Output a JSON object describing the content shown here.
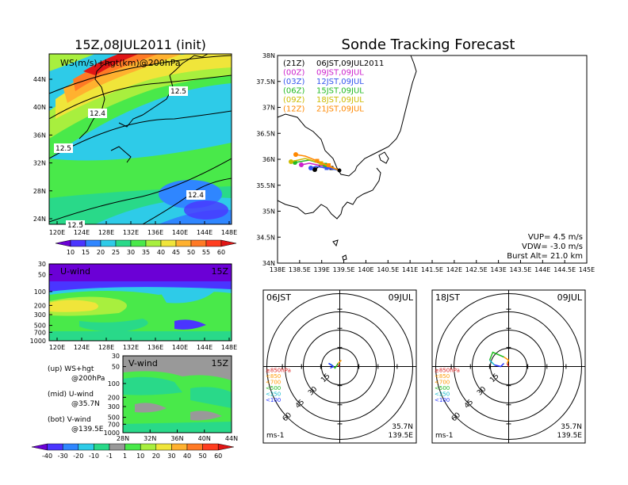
{
  "colors": {
    "run00": "#cc22cc",
    "run03": "#3355ee",
    "run06": "#22bb22",
    "run09": "#ccbb00",
    "run12": "#ff8800",
    "run21": "#000000",
    "red": "#dd2222",
    "orange": "#ff9900",
    "green": "#22bb22",
    "cyan": "#11bbcc",
    "blue": "#2233ff"
  },
  "map_panel": {
    "title": "15Z,08JUL2011 (init)",
    "label": "WS(m/s)+hgt(km)@200hPa",
    "lat_ticks": [
      "44N",
      "40N",
      "36N",
      "32N",
      "28N",
      "24N"
    ],
    "lon_ticks": [
      "120E",
      "124E",
      "128E",
      "132E",
      "136E",
      "140E",
      "144E",
      "148E"
    ],
    "contour_labels": [
      "12.5",
      "12.4",
      "12.5",
      "12.4",
      "12.5"
    ],
    "colorbar": {
      "labels": [
        "10",
        "15",
        "20",
        "25",
        "30",
        "35",
        "40",
        "45",
        "50",
        "55",
        "60"
      ],
      "colors": [
        "#6b00d6",
        "#4a35ff",
        "#2f86ff",
        "#2ecbe8",
        "#29d989",
        "#49e94a",
        "#a8ef3e",
        "#f0e53a",
        "#ffb12f",
        "#ff7a25",
        "#ff3d1f",
        "#e01515"
      ]
    }
  },
  "uwind_panel": {
    "label": "U-wind",
    "time": "15Z",
    "y_ticks": [
      "30",
      "50",
      "100",
      "200",
      "300",
      "500",
      "700",
      "1000"
    ],
    "x_ticks": [
      "120E",
      "124E",
      "128E",
      "132E",
      "136E",
      "140E",
      "144E",
      "148E"
    ]
  },
  "vwind_panel": {
    "label": "V-wind",
    "time": "15Z",
    "y_ticks": [
      "30",
      "50",
      "100",
      "200",
      "300",
      "500",
      "700",
      "1000"
    ],
    "x_ticks": [
      "28N",
      "32N",
      "36N",
      "40N",
      "44N"
    ]
  },
  "legend_notes": [
    {
      "a": "(up) WS+hgt",
      "b": "@200hPa"
    },
    {
      "a": "(mid) U-wind",
      "b": "@35.7N"
    },
    {
      "a": "(bot) V-wind",
      "b": "@139.5E"
    }
  ],
  "wind_colorbar": {
    "labels": [
      "-40",
      "-30",
      "-20",
      "-10",
      "-1",
      "1",
      "10",
      "20",
      "30",
      "40",
      "50",
      "60"
    ],
    "colors": [
      "#6b00d6",
      "#4a35ff",
      "#2f86ff",
      "#2ecbe8",
      "#29d989",
      "#999999",
      "#49e94a",
      "#a8ef3e",
      "#f0e53a",
      "#ffb12f",
      "#ff7a25",
      "#ff3d1f",
      "#e01515"
    ]
  },
  "sonde": {
    "title": "Sonde Tracking Forecast",
    "runs": [
      {
        "code": "(21Z)",
        "time": "06JST,09JUL2011",
        "color_key": "run21"
      },
      {
        "code": "(00Z)",
        "time": "09JST,09JUL",
        "color_key": "run00"
      },
      {
        "code": "(03Z)",
        "time": "12JST,09JUL",
        "color_key": "run03"
      },
      {
        "code": "(06Z)",
        "time": "15JST,09JUL",
        "color_key": "run06"
      },
      {
        "code": "(09Z)",
        "time": "18JST,09JUL",
        "color_key": "run09"
      },
      {
        "code": "(12Z)",
        "time": "21JST,09JUL",
        "color_key": "run12"
      }
    ],
    "lat_ticks": [
      "38N",
      "37.5N",
      "37N",
      "36.5N",
      "36N",
      "35.5N",
      "35N",
      "34.5N",
      "34N"
    ],
    "lon_ticks": [
      "138E",
      "138.5E",
      "139E",
      "139.5E",
      "140E",
      "140.5E",
      "141E",
      "141.5E",
      "142E",
      "142.5E",
      "143E",
      "143.5E",
      "144E",
      "144.5E",
      "145E"
    ],
    "params": [
      "VUP= 4.5 m/s",
      "VDW= -3.0 m/s",
      "Burst Alt= 21.0 km"
    ]
  },
  "hodographs": [
    {
      "time": "06JST",
      "date": "09JUL",
      "lat": "35.7N",
      "lon": "139.5E",
      "unit": "ms-1"
    },
    {
      "time": "18JST",
      "date": "09JUL",
      "lat": "35.7N",
      "lon": "139.5E",
      "unit": "ms-1"
    }
  ],
  "hodo_ring_labels": [
    "15",
    "30",
    "45",
    "60"
  ],
  "hodo_levels": [
    "≥850hPa",
    "<850",
    "<700",
    "<500",
    "<250",
    "<100"
  ]
}
